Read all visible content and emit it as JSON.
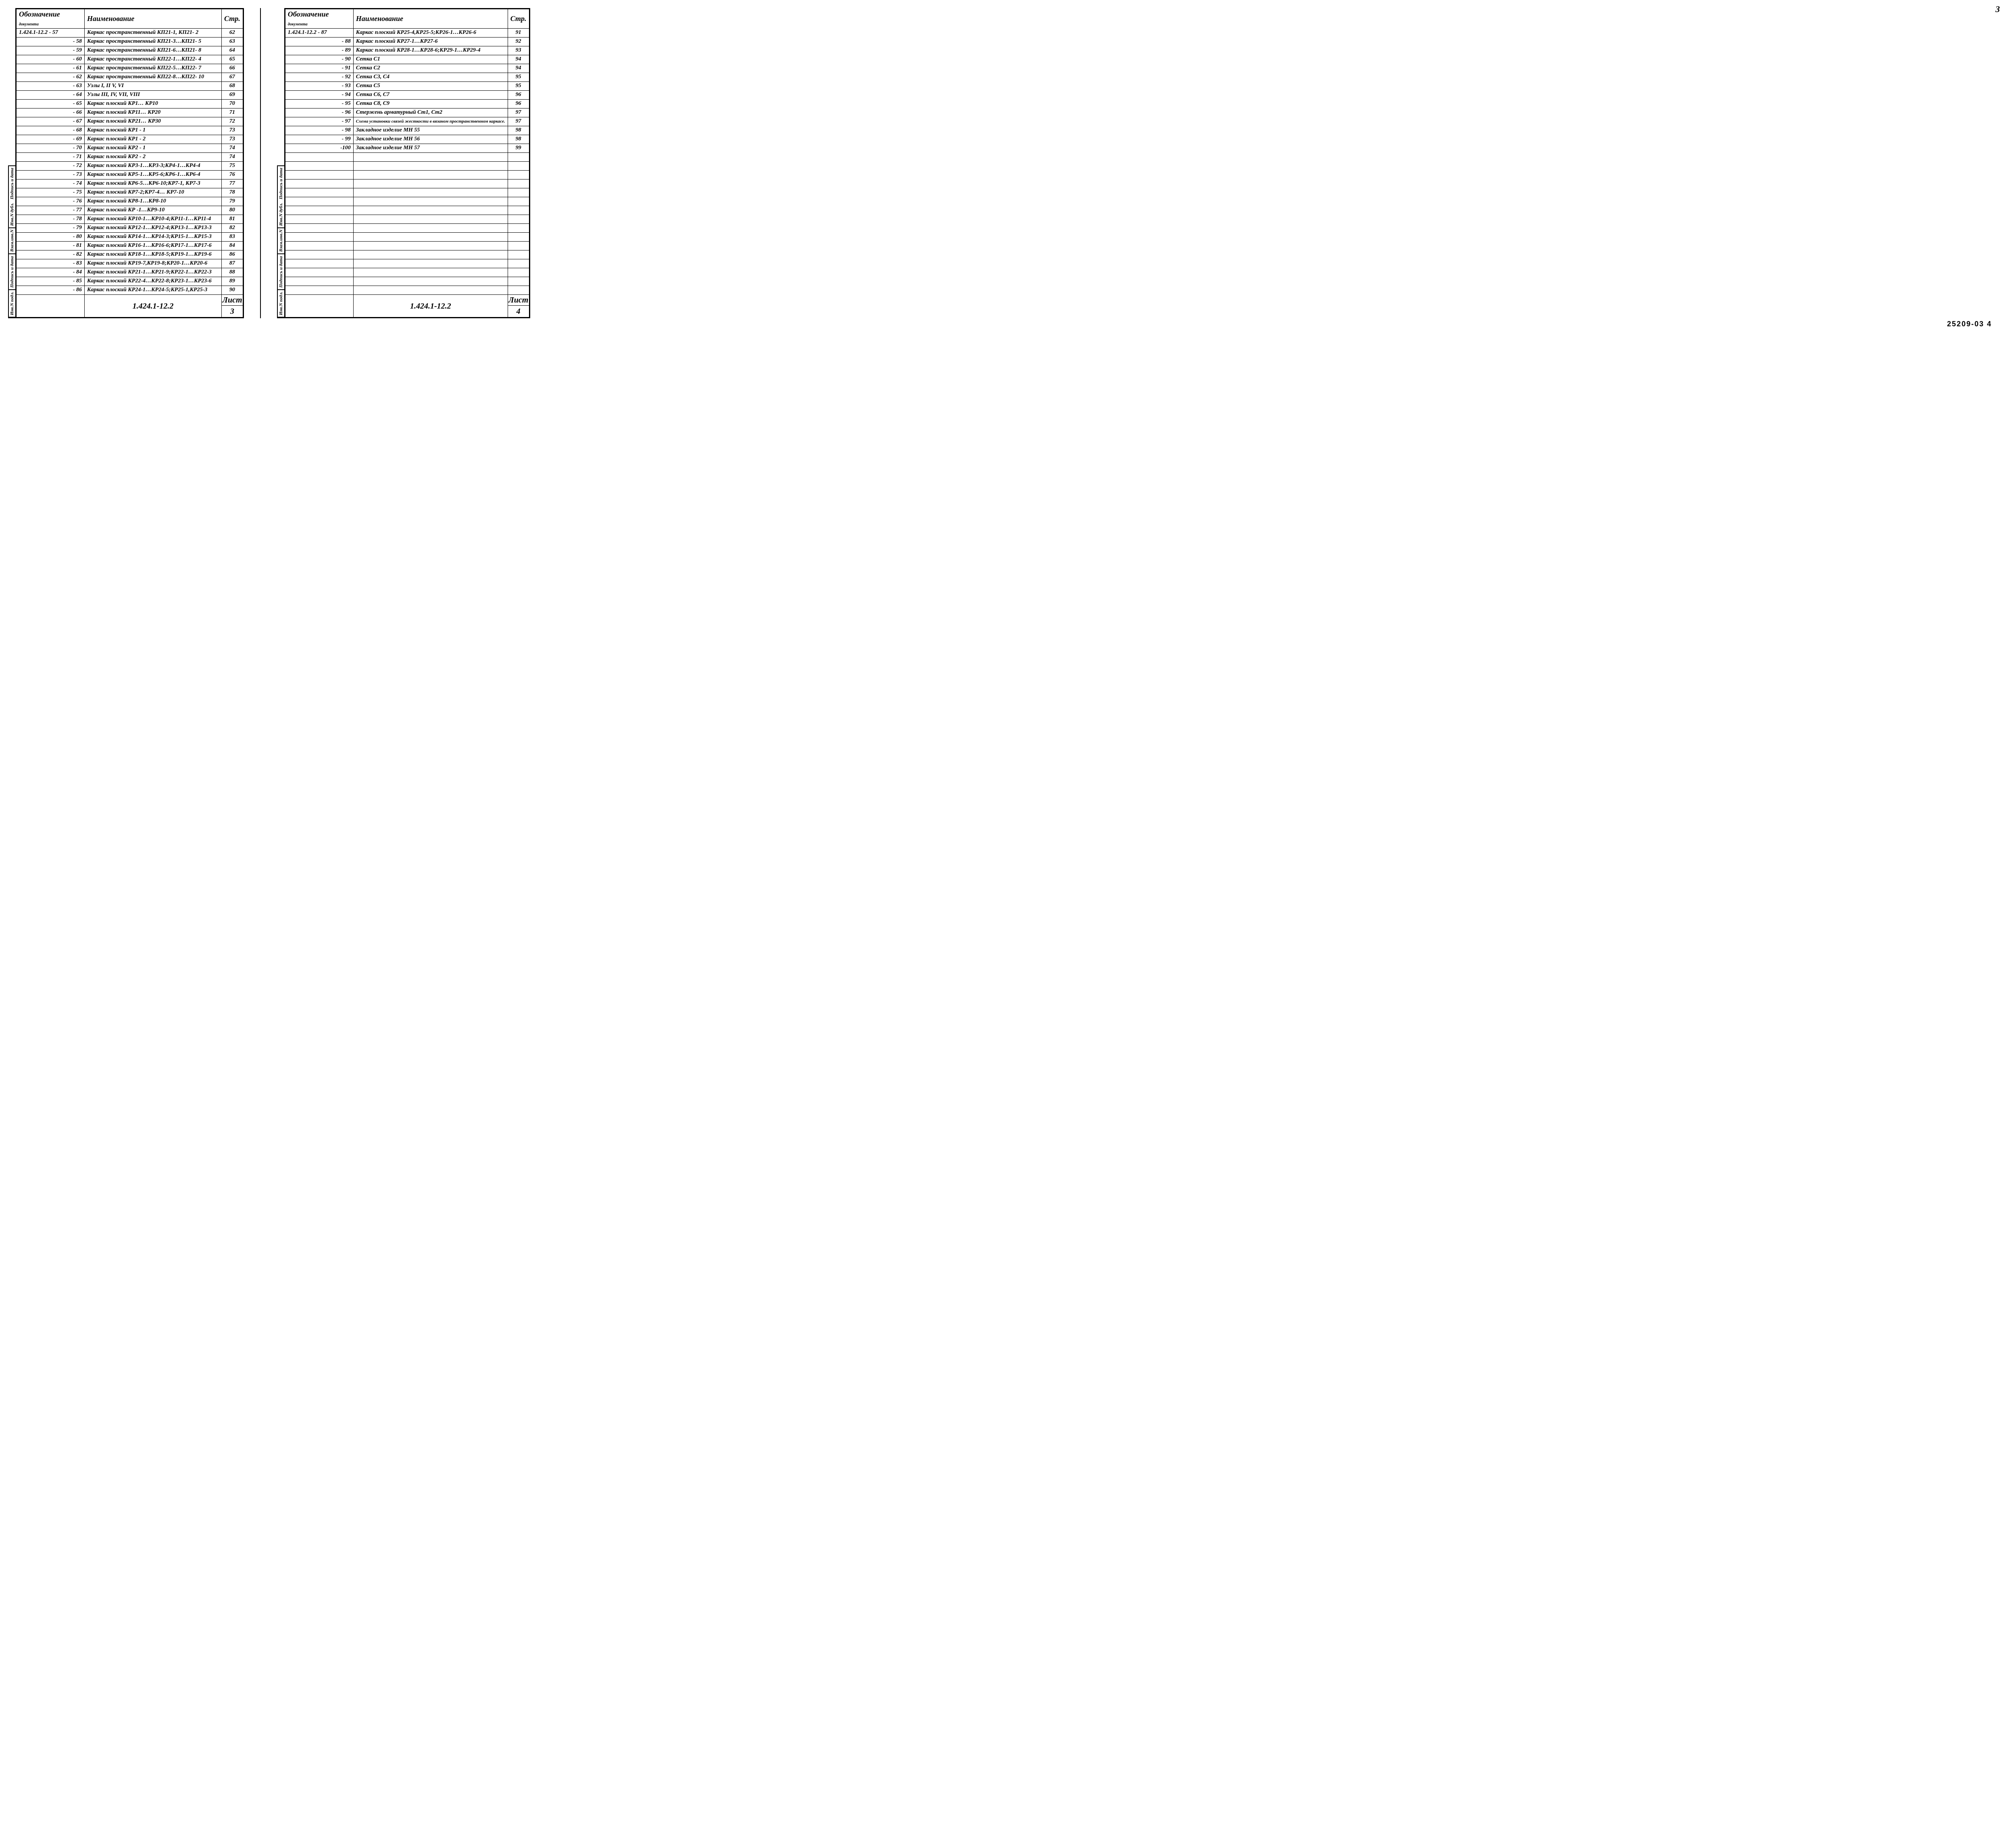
{
  "page_number_top": "3",
  "bottom_code": "25209-03 4",
  "headers": {
    "designation": "Обозначение",
    "designation_sub": "документа",
    "name": "Наименование",
    "page": "Стр."
  },
  "side_labels": {
    "a": "Инв.N подл.",
    "b": "Подпись и дата",
    "c": "Взам.инв.N",
    "d": "Инв.N дубл.",
    "e": "Подпись и дата"
  },
  "left": {
    "series_prefix": "1.424.1-12.2",
    "rows": [
      {
        "d": "1.424.1-12.2   - 57",
        "n": "Каркас пространственный КП21-1, КП21- 2",
        "p": "62"
      },
      {
        "d": "- 58",
        "n": "Каркас пространственный  КП21-3…КП21- 5",
        "p": "63"
      },
      {
        "d": "- 59",
        "n": "Каркас пространственный  КП21-6…КП21- 8",
        "p": "64"
      },
      {
        "d": "- 60",
        "n": "Каркас пространственный   КП22-1…КП22- 4",
        "p": "65"
      },
      {
        "d": "- 61",
        "n": "Каркас пространственный  КП22-5…КП22- 7",
        "p": "66"
      },
      {
        "d": "- 62",
        "n": "Каркас пространственный   КП22-8…КП22- 10",
        "p": "67"
      },
      {
        "d": "- 63",
        "n": "Узлы  I, II  V, VI",
        "p": "68"
      },
      {
        "d": "- 64",
        "n": "Узлы  III, IV, VII, VIII",
        "p": "69"
      },
      {
        "d": "- 65",
        "n": "Каркас плоский     КР1…   КР10",
        "p": "70"
      },
      {
        "d": "- 66",
        "n": "Каркас плоский     КР11…   КР20",
        "p": "71"
      },
      {
        "d": "- 67",
        "n": "Каркас плоский     КР21…   КР30",
        "p": "72"
      },
      {
        "d": "- 68",
        "n": "Каркас плоский     КР1 - 1",
        "p": "73"
      },
      {
        "d": "- 69",
        "n": "Каркас плоский     КР1 - 2",
        "p": "73"
      },
      {
        "d": "- 70",
        "n": "Каркас плоский     КР2 - 1",
        "p": "74"
      },
      {
        "d": "- 71",
        "n": "Каркас плоский     КР2 - 2",
        "p": "74"
      },
      {
        "d": "- 72",
        "n": "Каркас плоский      КР3-1…КР3-3;КР4-1…КР4-4",
        "p": "75"
      },
      {
        "d": "- 73",
        "n": "Каркас плоский      КР5-1…КР5-6;КР6-1…КР6-4",
        "p": "76"
      },
      {
        "d": "- 74",
        "n": "Каркас плоский      КР6-5…КР6-10;КР7-1, КР7-3",
        "p": "77"
      },
      {
        "d": "- 75",
        "n": "Каркас плоский      КР7-2;КР7-4… КР7-10",
        "p": "78"
      },
      {
        "d": "- 76",
        "n": "Каркас плоский      КР8-1…КР8-10",
        "p": "79"
      },
      {
        "d": "- 77",
        "n": "Каркас плоский      КР -1…КР9-10",
        "p": "80"
      },
      {
        "d": "- 78",
        "n": "Каркас плоский      КР10-1…КР10-4;КР11-1…КР11-4",
        "p": "81"
      },
      {
        "d": "- 79",
        "n": "Каркас плоский      КР12-1…КР12-4;КР13-1…КР13-3",
        "p": "82"
      },
      {
        "d": "- 80",
        "n": "Каркас плоский      КР14-1…КР14-3;КР15-1…КР15-3",
        "p": "83"
      },
      {
        "d": "- 81",
        "n": "Каркас плоский      КР16-1…КР16-6;КР17-1…КР17-6",
        "p": "84"
      },
      {
        "d": "- 82",
        "n": "Каркас плоский      КР18-1…КР18-5;КР19-1…КР19-6",
        "p": "86"
      },
      {
        "d": "- 83",
        "n": "Каркас плоский      КР19-7,КР19-8;КР20-1…КР20-6",
        "p": "87"
      },
      {
        "d": "- 84",
        "n": "Каркас плоский      КР21-1…КР21-9;КР22-1…КР22-3",
        "p": "88"
      },
      {
        "d": "- 85",
        "n": "Каркас плоский      КР22-4…КР22-8;КР23-1…КР23-6",
        "p": "89"
      },
      {
        "d": "- 86",
        "n": "Каркас плоский      КР24-1…КР24-5;КР25-1,КР25-3",
        "p": "90"
      }
    ],
    "footer_title": "1.424.1-12.2",
    "footer_label": "Лист",
    "footer_num": "3"
  },
  "right": {
    "rows": [
      {
        "d": "1.424.1-12.2  - 87",
        "n": "Каркас плоский    КР25-4,КР25-5;КР26-1…КР26-6",
        "p": "91"
      },
      {
        "d": "- 88",
        "n": "Каркас плоский    КР27-1…КР27-6",
        "p": "92"
      },
      {
        "d": "- 89",
        "n": "Каркас плоский    КР28-1…КР28-6;КР29-1…КР29-4",
        "p": "93"
      },
      {
        "d": "- 90",
        "n": "Сетка  С1",
        "p": "94"
      },
      {
        "d": "- 91",
        "n": "Сетка  С2",
        "p": "94"
      },
      {
        "d": "- 92",
        "n": "Сетка  С3, С4",
        "p": "95"
      },
      {
        "d": "- 93",
        "n": "Сетка  С5",
        "p": "95"
      },
      {
        "d": "- 94",
        "n": "Сетка  С6, С7",
        "p": "96"
      },
      {
        "d": "- 95",
        "n": "Сетка  С8, С9",
        "p": "96"
      },
      {
        "d": "- 96",
        "n": "Стержень  арматурный  Ст1, Ст2",
        "p": "97"
      },
      {
        "d": "- 97",
        "n": "Схема установки связей жесткости в вязаном пространственном каркасе.",
        "p": "97"
      },
      {
        "d": "- 98",
        "n": "Закладное   изделие    МН 55",
        "p": "98"
      },
      {
        "d": "- 99",
        "n": "Закладное   изделие    МН 56",
        "p": "98"
      },
      {
        "d": "-100",
        "n": "Закладное   изделие    МН 57",
        "p": "99"
      }
    ],
    "empty_rows": 16,
    "footer_title": "1.424.1-12.2",
    "footer_label": "Лист",
    "footer_num": "4"
  }
}
